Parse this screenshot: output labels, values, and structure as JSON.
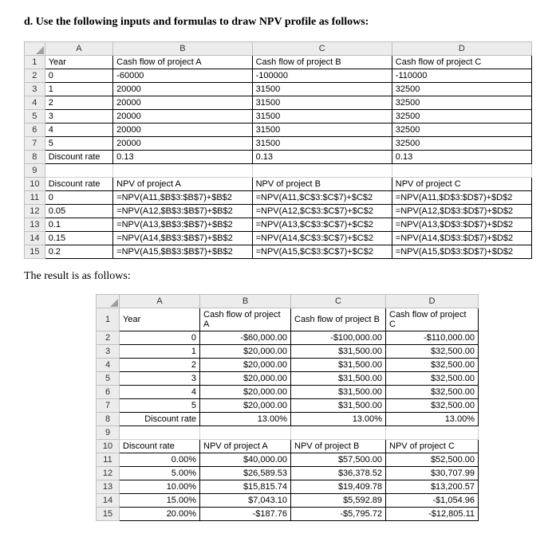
{
  "heading": "d. Use the following inputs and formulas to draw NPV profile as follows:",
  "table1": {
    "cols": [
      "A",
      "B",
      "C",
      "D"
    ],
    "rows": [
      {
        "n": "1",
        "A": "Year",
        "B": "Cash flow of project A",
        "C": "Cash flow of project B",
        "D": "Cash flow of project C"
      },
      {
        "n": "2",
        "A": "0",
        "B": "-60000",
        "C": "-100000",
        "D": "-110000"
      },
      {
        "n": "3",
        "A": "1",
        "B": "20000",
        "C": "31500",
        "D": "32500"
      },
      {
        "n": "4",
        "A": "2",
        "B": "20000",
        "C": "31500",
        "D": "32500"
      },
      {
        "n": "5",
        "A": "3",
        "B": "20000",
        "C": "31500",
        "D": "32500"
      },
      {
        "n": "6",
        "A": "4",
        "B": "20000",
        "C": "31500",
        "D": "32500"
      },
      {
        "n": "7",
        "A": "5",
        "B": "20000",
        "C": "31500",
        "D": "32500"
      },
      {
        "n": "8",
        "A": "Discount rate",
        "B": "0.13",
        "C": "0.13",
        "D": "0.13"
      },
      {
        "n": "9",
        "A": "",
        "B": "",
        "C": "",
        "D": "",
        "blank": true
      },
      {
        "n": "10",
        "A": "Discount rate",
        "B": "NPV of project A",
        "C": "NPV of project B",
        "D": "NPV of project C"
      },
      {
        "n": "11",
        "A": "0",
        "B": "=NPV(A11,$B$3:$B$7)+$B$2",
        "C": "=NPV(A11,$C$3:$C$7)+$C$2",
        "D": "=NPV(A11,$D$3:$D$7)+$D$2"
      },
      {
        "n": "12",
        "A": "0.05",
        "B": "=NPV(A12,$B$3:$B$7)+$B$2",
        "C": "=NPV(A12,$C$3:$C$7)+$C$2",
        "D": "=NPV(A12,$D$3:$D$7)+$D$2"
      },
      {
        "n": "13",
        "A": "0.1",
        "B": "=NPV(A13,$B$3:$B$7)+$B$2",
        "C": "=NPV(A13,$C$3:$C$7)+$C$2",
        "D": "=NPV(A13,$D$3:$D$7)+$D$2"
      },
      {
        "n": "14",
        "A": "0.15",
        "B": "=NPV(A14,$B$3:$B$7)+$B$2",
        "C": "=NPV(A14,$C$3:$C$7)+$C$2",
        "D": "=NPV(A14,$D$3:$D$7)+$D$2"
      },
      {
        "n": "15",
        "A": "0.2",
        "B": "=NPV(A15,$B$3:$B$7)+$B$2",
        "C": "=NPV(A15,$C$3:$C$7)+$C$2",
        "D": "=NPV(A15,$D$3:$D$7)+$D$2"
      }
    ]
  },
  "resultText": "The result is as follows:",
  "table2": {
    "cols": [
      "A",
      "B",
      "C",
      "D"
    ],
    "rows": [
      {
        "n": "1",
        "A": "Year",
        "B": "Cash flow of project A",
        "C": "Cash flow of project B",
        "D": "Cash flow of project C",
        "hdr": true
      },
      {
        "n": "2",
        "A": "0",
        "B": "-$60,000.00",
        "C": "-$100,000.00",
        "D": "-$110,000.00"
      },
      {
        "n": "3",
        "A": "1",
        "B": "$20,000.00",
        "C": "$31,500.00",
        "D": "$32,500.00"
      },
      {
        "n": "4",
        "A": "2",
        "B": "$20,000.00",
        "C": "$31,500.00",
        "D": "$32,500.00"
      },
      {
        "n": "5",
        "A": "3",
        "B": "$20,000.00",
        "C": "$31,500.00",
        "D": "$32,500.00"
      },
      {
        "n": "6",
        "A": "4",
        "B": "$20,000.00",
        "C": "$31,500.00",
        "D": "$32,500.00"
      },
      {
        "n": "7",
        "A": "5",
        "B": "$20,000.00",
        "C": "$31,500.00",
        "D": "$32,500.00"
      },
      {
        "n": "8",
        "A": "Discount rate",
        "B": "13.00%",
        "C": "13.00%",
        "D": "13.00%"
      },
      {
        "n": "9",
        "A": "",
        "B": "",
        "C": "",
        "D": "",
        "blank": true
      },
      {
        "n": "10",
        "A": "Discount rate",
        "B": "NPV of project A",
        "C": "NPV of project B",
        "D": "NPV of project C",
        "hdr": true
      },
      {
        "n": "11",
        "A": "0.00%",
        "B": "$40,000.00",
        "C": "$57,500.00",
        "D": "$52,500.00"
      },
      {
        "n": "12",
        "A": "5.00%",
        "B": "$26,589.53",
        "C": "$36,378.52",
        "D": "$30,707.99"
      },
      {
        "n": "13",
        "A": "10.00%",
        "B": "$15,815.74",
        "C": "$19,409.78",
        "D": "$13,200.57"
      },
      {
        "n": "14",
        "A": "15.00%",
        "B": "$7,043.10",
        "C": "$5,592.89",
        "D": "-$1,054.96"
      },
      {
        "n": "15",
        "A": "20.00%",
        "B": "-$187.76",
        "C": "-$5,795.72",
        "D": "-$12,805.11"
      }
    ]
  }
}
